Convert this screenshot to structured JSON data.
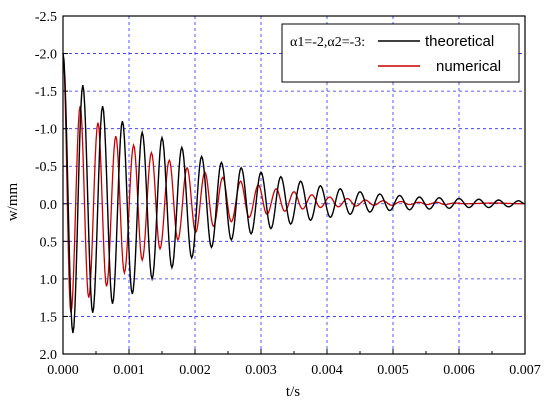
{
  "chart_data": {
    "type": "line",
    "title": "",
    "xlabel": "t/s",
    "ylabel": "w/mm",
    "xlim": [
      0.0,
      0.007
    ],
    "ylim": [
      -2.5,
      2.0
    ],
    "y_inverted": true,
    "grid": true,
    "legend_position": "top-right",
    "legend_parameters": "α1=-2,α2=-3:",
    "x_ticks": [
      "0.000",
      "0.001",
      "0.002",
      "0.003",
      "0.004",
      "0.005",
      "0.006",
      "0.007"
    ],
    "x_tick_values": [
      0,
      0.001,
      0.002,
      0.003,
      0.004,
      0.005,
      0.006,
      0.007
    ],
    "y_ticks": [
      "-2.5",
      "-2.0",
      "-1.5",
      "-1.0",
      "-0.5",
      "0.0",
      "0.5",
      "1.0",
      "1.5",
      "2.0"
    ],
    "y_tick_values": [
      -2.5,
      -2.0,
      -1.5,
      -1.0,
      -0.5,
      0.0,
      0.5,
      1.0,
      1.5,
      2.0
    ],
    "series": [
      {
        "name": "theoretical",
        "color": "#000000",
        "points": [
          [
            0.0,
            -2.0
          ],
          [
            0.00015,
            1.72
          ],
          [
            0.0003,
            -1.58
          ],
          [
            0.00045,
            1.45
          ],
          [
            0.0006,
            -1.3
          ],
          [
            0.00075,
            1.33
          ],
          [
            0.0009,
            -1.1
          ],
          [
            0.00105,
            1.2
          ],
          [
            0.0012,
            -0.95
          ],
          [
            0.00135,
            1.0
          ],
          [
            0.0015,
            -0.88
          ],
          [
            0.00165,
            0.85
          ],
          [
            0.0018,
            -0.75
          ],
          [
            0.00195,
            0.72
          ],
          [
            0.0021,
            -0.63
          ],
          [
            0.00225,
            0.58
          ],
          [
            0.0024,
            -0.55
          ],
          [
            0.00255,
            0.48
          ],
          [
            0.0027,
            -0.48
          ],
          [
            0.00285,
            0.4
          ],
          [
            0.003,
            -0.42
          ],
          [
            0.00315,
            0.33
          ],
          [
            0.0033,
            -0.36
          ],
          [
            0.00345,
            0.27
          ],
          [
            0.0036,
            -0.3
          ],
          [
            0.00375,
            0.22
          ],
          [
            0.0039,
            -0.24
          ],
          [
            0.00405,
            0.18
          ],
          [
            0.0042,
            -0.2
          ],
          [
            0.00435,
            0.14
          ],
          [
            0.0045,
            -0.16
          ],
          [
            0.00465,
            0.11
          ],
          [
            0.0048,
            -0.13
          ],
          [
            0.00495,
            0.09
          ],
          [
            0.0051,
            -0.11
          ],
          [
            0.00525,
            0.08
          ],
          [
            0.0054,
            -0.09
          ],
          [
            0.00555,
            0.07
          ],
          [
            0.0057,
            -0.08
          ],
          [
            0.00585,
            0.06
          ],
          [
            0.006,
            -0.07
          ],
          [
            0.00615,
            0.05
          ],
          [
            0.0063,
            -0.06
          ],
          [
            0.00645,
            0.05
          ],
          [
            0.0066,
            -0.05
          ],
          [
            0.00675,
            0.04
          ],
          [
            0.0069,
            -0.04
          ],
          [
            0.007,
            0.0
          ]
        ]
      },
      {
        "name": "numerical",
        "color": "#cc0000",
        "points": [
          [
            0.0,
            -2.0
          ],
          [
            0.00012,
            1.45
          ],
          [
            0.00026,
            -1.3
          ],
          [
            0.00039,
            1.25
          ],
          [
            0.00053,
            -1.08
          ],
          [
            0.00066,
            1.1
          ],
          [
            0.0008,
            -0.9
          ],
          [
            0.00093,
            0.92
          ],
          [
            0.00107,
            -0.78
          ],
          [
            0.0012,
            0.75
          ],
          [
            0.00134,
            -0.68
          ],
          [
            0.00147,
            0.6
          ],
          [
            0.00161,
            -0.58
          ],
          [
            0.00174,
            0.48
          ],
          [
            0.00188,
            -0.48
          ],
          [
            0.00201,
            0.38
          ],
          [
            0.00215,
            -0.42
          ],
          [
            0.00228,
            0.3
          ],
          [
            0.00242,
            -0.35
          ],
          [
            0.00255,
            0.24
          ],
          [
            0.00269,
            -0.3
          ],
          [
            0.00282,
            0.18
          ],
          [
            0.00296,
            -0.25
          ],
          [
            0.00309,
            0.14
          ],
          [
            0.00323,
            -0.2
          ],
          [
            0.00336,
            0.1
          ],
          [
            0.0035,
            -0.16
          ],
          [
            0.00363,
            0.07
          ],
          [
            0.00377,
            -0.12
          ],
          [
            0.0039,
            0.05
          ],
          [
            0.00404,
            -0.09
          ],
          [
            0.00417,
            0.04
          ],
          [
            0.00431,
            -0.07
          ],
          [
            0.00444,
            0.03
          ],
          [
            0.00458,
            -0.05
          ],
          [
            0.00471,
            0.02
          ],
          [
            0.00485,
            -0.04
          ],
          [
            0.00498,
            0.02
          ],
          [
            0.00512,
            -0.03
          ],
          [
            0.00525,
            0.01
          ],
          [
            0.00539,
            -0.02
          ],
          [
            0.00552,
            0.01
          ],
          [
            0.00566,
            -0.02
          ],
          [
            0.00579,
            0.01
          ],
          [
            0.00593,
            -0.01
          ],
          [
            0.0061,
            0.0
          ],
          [
            0.0065,
            -0.01
          ],
          [
            0.007,
            0.0
          ]
        ]
      }
    ]
  }
}
